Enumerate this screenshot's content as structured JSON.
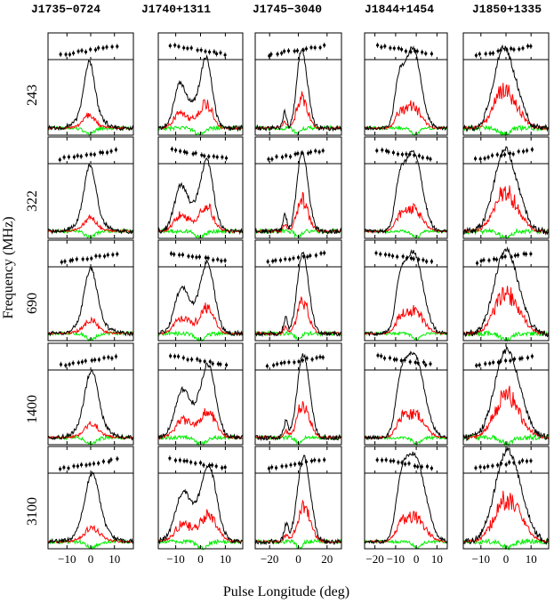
{
  "pulsars": [
    "J1735−0724",
    "J1740+1311",
    "J1745−3040",
    "J1844+1454",
    "J1850+1335"
  ],
  "frequencies": [
    "243",
    "322",
    "690",
    "1400",
    "3100"
  ],
  "xlabel": "Pulse Longitude (deg)",
  "ylabel": "Frequency (MHz)",
  "colors": {
    "total": "#000000",
    "linear": "#ff0000",
    "circular": "#00ee00",
    "pa": "#000000"
  },
  "chart_data": {
    "type": "line",
    "title": "",
    "description_series": [
      "total intensity (black)",
      "linear polarization (red)",
      "circular polarization (green)",
      "position angle points (upper panels)"
    ],
    "columns": [
      {
        "pulsar": "J1735−0724",
        "xlim": [
          -18,
          18
        ],
        "xticks": [
          -10,
          0,
          10
        ],
        "xticklabels": [
          "−10",
          "0",
          "10"
        ]
      },
      {
        "pulsar": "J1740+1311",
        "xlim": [
          -17,
          17
        ],
        "xticks": [
          -10,
          0,
          10
        ],
        "xticklabels": [
          "−10",
          "0",
          "10"
        ]
      },
      {
        "pulsar": "J1745−3040",
        "xlim": [
          -30,
          30
        ],
        "xticks": [
          -20,
          0,
          20
        ],
        "xticklabels": [
          "−20",
          "0",
          "20"
        ]
      },
      {
        "pulsar": "J1844+1454",
        "xlim": [
          -25,
          15
        ],
        "xticks": [
          -20,
          -10,
          0,
          10
        ],
        "xticklabels": [
          "−20",
          "−10",
          "0",
          "10"
        ]
      },
      {
        "pulsar": "J1850+1335",
        "xlim": [
          -17,
          17
        ],
        "xticks": [
          -10,
          0,
          10
        ],
        "xticklabels": [
          "−10",
          "0",
          "10"
        ]
      }
    ],
    "rows": [
      "243",
      "322",
      "690",
      "1400",
      "3100"
    ]
  }
}
